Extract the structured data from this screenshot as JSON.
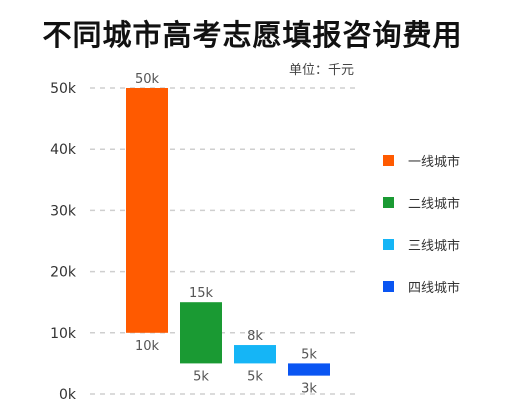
{
  "chart_data": {
    "type": "bar",
    "title": "不同城市高考志愿填报咨询费用",
    "unit_label": "单位：千元",
    "ylim": [
      0,
      50
    ],
    "yticks": [
      0,
      10,
      20,
      30,
      40,
      50
    ],
    "ytick_labels": [
      "0k",
      "10k",
      "20k",
      "30k",
      "40k",
      "50k"
    ],
    "grid": true,
    "legend_position": "right",
    "series": [
      {
        "name": "一线城市",
        "color": "#ff5a00",
        "low": 10,
        "high": 50,
        "low_label": "10k",
        "high_label": "50k"
      },
      {
        "name": "二线城市",
        "color": "#1a9a33",
        "low": 5,
        "high": 15,
        "low_label": "5k",
        "high_label": "15k"
      },
      {
        "name": "三线城市",
        "color": "#15b5f6",
        "low": 5,
        "high": 8,
        "low_label": "5k",
        "high_label": "8k"
      },
      {
        "name": "四线城市",
        "color": "#0a55f2",
        "low": 3,
        "high": 5,
        "low_label": "3k",
        "high_label": "5k"
      }
    ]
  }
}
